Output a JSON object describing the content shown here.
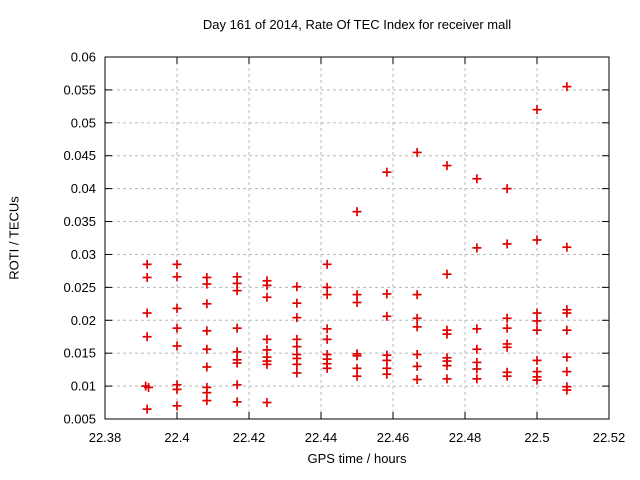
{
  "page": {
    "background": "#ffffff"
  },
  "chart_data": {
    "type": "scatter",
    "title": "Day 161 of 2014, Rate Of TEC Index for receiver mall",
    "xlabel": "GPS time / hours",
    "ylabel": "ROTI / TECUs",
    "xlim": [
      22.38,
      22.52
    ],
    "ylim": [
      0.005,
      0.06
    ],
    "xtick_labels": [
      "22.38",
      "22.4",
      "22.42",
      "22.44",
      "22.46",
      "22.48",
      "22.5",
      "22.52"
    ],
    "ytick_labels": [
      "0.005",
      "0.01",
      "0.015",
      "0.02",
      "0.025",
      "0.03",
      "0.035",
      "0.04",
      "0.045",
      "0.05",
      "0.055",
      "0.06"
    ],
    "grid": true,
    "legend": false,
    "marker": "plus",
    "colors": {
      "marker": "#e00000",
      "grid": "#b9b9b9",
      "axis": "#000000",
      "text": "#000000"
    },
    "series": [
      {
        "name": "ROTI",
        "points": [
          [
            22.3917,
            0.0285
          ],
          [
            22.3917,
            0.0265
          ],
          [
            22.3917,
            0.0211
          ],
          [
            22.3917,
            0.0175
          ],
          [
            22.3913,
            0.01
          ],
          [
            22.3921,
            0.0098
          ],
          [
            22.3917,
            0.0065
          ],
          [
            22.4,
            0.0285
          ],
          [
            22.4,
            0.0266
          ],
          [
            22.4,
            0.0218
          ],
          [
            22.4,
            0.0188
          ],
          [
            22.4,
            0.0161
          ],
          [
            22.4,
            0.0102
          ],
          [
            22.4,
            0.0095
          ],
          [
            22.4,
            0.007
          ],
          [
            22.4083,
            0.0265
          ],
          [
            22.4083,
            0.0255
          ],
          [
            22.4083,
            0.0225
          ],
          [
            22.4083,
            0.0184
          ],
          [
            22.4083,
            0.0156
          ],
          [
            22.4083,
            0.0129
          ],
          [
            22.4083,
            0.0098
          ],
          [
            22.4083,
            0.009
          ],
          [
            22.4083,
            0.0078
          ],
          [
            22.4167,
            0.0266
          ],
          [
            22.4167,
            0.0256
          ],
          [
            22.4167,
            0.0245
          ],
          [
            22.4167,
            0.0188
          ],
          [
            22.4167,
            0.0152
          ],
          [
            22.4167,
            0.014
          ],
          [
            22.4167,
            0.0135
          ],
          [
            22.4167,
            0.0102
          ],
          [
            22.4167,
            0.0076
          ],
          [
            22.425,
            0.026
          ],
          [
            22.425,
            0.0253
          ],
          [
            22.425,
            0.0235
          ],
          [
            22.425,
            0.0171
          ],
          [
            22.425,
            0.0155
          ],
          [
            22.425,
            0.0144
          ],
          [
            22.425,
            0.0138
          ],
          [
            22.425,
            0.0133
          ],
          [
            22.425,
            0.0075
          ],
          [
            22.4333,
            0.0251
          ],
          [
            22.4333,
            0.0226
          ],
          [
            22.4333,
            0.0204
          ],
          [
            22.4333,
            0.0171
          ],
          [
            22.4333,
            0.016
          ],
          [
            22.4333,
            0.0148
          ],
          [
            22.4333,
            0.0142
          ],
          [
            22.4333,
            0.0133
          ],
          [
            22.4333,
            0.012
          ],
          [
            22.4417,
            0.0285
          ],
          [
            22.4417,
            0.025
          ],
          [
            22.4417,
            0.0239
          ],
          [
            22.4417,
            0.0187
          ],
          [
            22.4417,
            0.0171
          ],
          [
            22.4417,
            0.0148
          ],
          [
            22.4417,
            0.0141
          ],
          [
            22.4417,
            0.0134
          ],
          [
            22.4417,
            0.0127
          ],
          [
            22.45,
            0.0365
          ],
          [
            22.45,
            0.0239
          ],
          [
            22.45,
            0.0227
          ],
          [
            22.45,
            0.0149
          ],
          [
            22.45,
            0.0146
          ],
          [
            22.45,
            0.0127
          ],
          [
            22.45,
            0.0115
          ],
          [
            22.4583,
            0.0425
          ],
          [
            22.4583,
            0.024
          ],
          [
            22.4583,
            0.0206
          ],
          [
            22.4583,
            0.0147
          ],
          [
            22.4583,
            0.0139
          ],
          [
            22.4583,
            0.0127
          ],
          [
            22.4583,
            0.0118
          ],
          [
            22.4667,
            0.0455
          ],
          [
            22.4667,
            0.0239
          ],
          [
            22.4667,
            0.0203
          ],
          [
            22.4667,
            0.019
          ],
          [
            22.4667,
            0.0148
          ],
          [
            22.4667,
            0.013
          ],
          [
            22.4667,
            0.011
          ],
          [
            22.475,
            0.0435
          ],
          [
            22.475,
            0.027
          ],
          [
            22.475,
            0.0185
          ],
          [
            22.475,
            0.0179
          ],
          [
            22.475,
            0.0143
          ],
          [
            22.475,
            0.0138
          ],
          [
            22.475,
            0.0131
          ],
          [
            22.475,
            0.0111
          ],
          [
            22.4833,
            0.0415
          ],
          [
            22.4833,
            0.031
          ],
          [
            22.4833,
            0.0187
          ],
          [
            22.4833,
            0.0156
          ],
          [
            22.4833,
            0.0136
          ],
          [
            22.4833,
            0.0126
          ],
          [
            22.4833,
            0.0111
          ],
          [
            22.4917,
            0.04
          ],
          [
            22.4917,
            0.0316
          ],
          [
            22.4917,
            0.0203
          ],
          [
            22.4917,
            0.0188
          ],
          [
            22.4917,
            0.0164
          ],
          [
            22.4917,
            0.0159
          ],
          [
            22.4917,
            0.0121
          ],
          [
            22.4917,
            0.0115
          ],
          [
            22.5,
            0.052
          ],
          [
            22.5,
            0.0322
          ],
          [
            22.5,
            0.0211
          ],
          [
            22.5,
            0.0199
          ],
          [
            22.5,
            0.0185
          ],
          [
            22.5,
            0.0139
          ],
          [
            22.5,
            0.0122
          ],
          [
            22.5,
            0.0114
          ],
          [
            22.5,
            0.0109
          ],
          [
            22.5083,
            0.0555
          ],
          [
            22.5083,
            0.0311
          ],
          [
            22.5083,
            0.0216
          ],
          [
            22.5083,
            0.0211
          ],
          [
            22.5083,
            0.0185
          ],
          [
            22.5083,
            0.0144
          ],
          [
            22.5083,
            0.0122
          ],
          [
            22.5083,
            0.0099
          ],
          [
            22.5083,
            0.0094
          ]
        ]
      }
    ]
  }
}
